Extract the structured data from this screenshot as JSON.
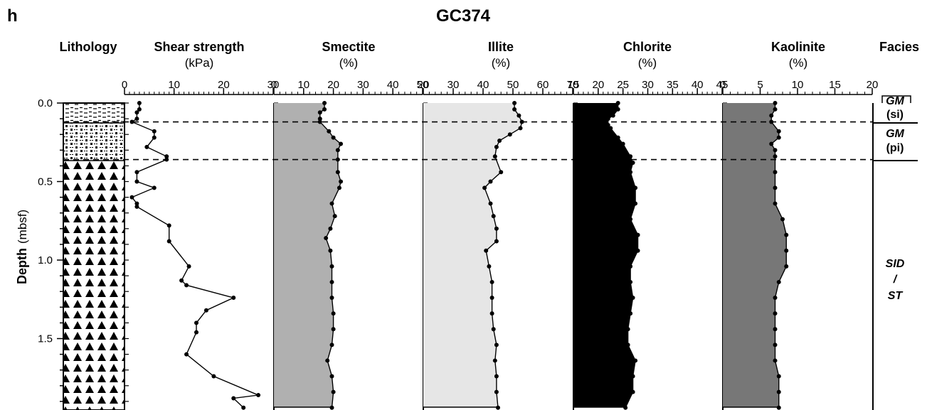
{
  "panel_letter": "h",
  "core_title": "GC374",
  "headers": {
    "lithology": "Lithology",
    "shear": "Shear strength",
    "shear_unit": "(kPa)",
    "smectite": "Smectite",
    "smectite_unit": "(%)",
    "illite": "Illite",
    "illite_unit": "(%)",
    "chlorite": "Chlorite",
    "chlorite_unit": "(%)",
    "kaolinite": "Kaolinite",
    "kaolinite_unit": "(%)",
    "facies": "Facies"
  },
  "y_axis": {
    "label_bold": "Depth",
    "label_unit": "(mbsf)",
    "ticks": [
      "0.0",
      "0.5",
      "1.0",
      "1.5"
    ]
  },
  "facies": {
    "gm1_a": "GM",
    "gm1_b": "(si)",
    "gm2_a": "GM",
    "gm2_b": "(pi)",
    "sid_a": "SID",
    "sid_b": "/",
    "sid_c": "ST"
  },
  "colors": {
    "smectite_fill": "#b0b0b0",
    "illite_fill": "#e6e6e6",
    "chlorite_fill": "#000000",
    "kaolinite_fill": "#777777"
  },
  "chart_data": [
    {
      "type": "line",
      "name": "Shear strength",
      "xlim": [
        0,
        30
      ],
      "xticks": [
        "0",
        "10",
        "20",
        "30"
      ],
      "ylim": [
        0.0,
        1.95
      ],
      "depth": [
        0.0,
        0.04,
        0.06,
        0.1,
        0.12,
        0.18,
        0.22,
        0.28,
        0.34,
        0.36,
        0.44,
        0.5,
        0.54,
        0.6,
        0.64,
        0.66,
        0.78,
        0.88,
        1.04,
        1.13,
        1.16,
        1.24,
        1.32,
        1.4,
        1.46,
        1.6,
        1.74,
        1.86,
        1.88,
        1.94
      ],
      "values": [
        3,
        3,
        2.5,
        2.5,
        1.5,
        6,
        6,
        4.5,
        8.5,
        8.5,
        2.5,
        2.5,
        6,
        1.5,
        2.5,
        2.5,
        9,
        9,
        13,
        11.5,
        12.5,
        22,
        16.5,
        14.5,
        14.5,
        12.5,
        18,
        27,
        22,
        24
      ]
    },
    {
      "type": "area",
      "name": "Smectite",
      "xlim": [
        0,
        50
      ],
      "xticks": [
        "0",
        "10",
        "20",
        "30",
        "40",
        "50"
      ],
      "ylim": [
        0.0,
        1.95
      ],
      "depth": [
        0.0,
        0.04,
        0.06,
        0.1,
        0.12,
        0.18,
        0.22,
        0.26,
        0.3,
        0.36,
        0.44,
        0.5,
        0.54,
        0.64,
        0.72,
        0.8,
        0.86,
        0.94,
        1.04,
        1.14,
        1.24,
        1.34,
        1.44,
        1.54,
        1.64,
        1.74,
        1.84,
        1.94
      ],
      "values": [
        17,
        17,
        15.5,
        15.5,
        15.5,
        18.5,
        20,
        22.5,
        21.5,
        21.5,
        21.5,
        22.5,
        22,
        19.5,
        20.5,
        19,
        17.5,
        19,
        19.5,
        19.5,
        19.5,
        20,
        20,
        19.5,
        18,
        19.5,
        20,
        19.5
      ]
    },
    {
      "type": "area",
      "name": "Illite",
      "xlim": [
        20,
        70
      ],
      "xticks": [
        "20",
        "30",
        "40",
        "50",
        "60",
        "70"
      ],
      "ylim": [
        0.0,
        1.95
      ],
      "depth": [
        0.0,
        0.04,
        0.08,
        0.12,
        0.16,
        0.2,
        0.24,
        0.28,
        0.34,
        0.44,
        0.5,
        0.54,
        0.64,
        0.72,
        0.8,
        0.88,
        0.94,
        1.04,
        1.14,
        1.24,
        1.34,
        1.44,
        1.54,
        1.64,
        1.74,
        1.84,
        1.94
      ],
      "values": [
        50.5,
        50.5,
        52,
        53,
        52.5,
        49,
        45.5,
        44.5,
        44,
        46,
        42.5,
        40.5,
        42.5,
        43.5,
        44.5,
        44.5,
        41,
        42,
        43,
        43,
        43,
        43.5,
        44.5,
        44,
        44.5,
        44.5,
        45
      ]
    },
    {
      "type": "area",
      "name": "Chlorite",
      "xlim": [
        15,
        45
      ],
      "xticks": [
        "15",
        "20",
        "25",
        "30",
        "35",
        "40",
        "45"
      ],
      "ylim": [
        0.0,
        1.95
      ],
      "depth": [
        0.0,
        0.04,
        0.08,
        0.1,
        0.14,
        0.16,
        0.22,
        0.26,
        0.34,
        0.38,
        0.44,
        0.54,
        0.64,
        0.74,
        0.84,
        0.94,
        1.04,
        1.14,
        1.24,
        1.34,
        1.44,
        1.54,
        1.64,
        1.74,
        1.84,
        1.94
      ],
      "values": [
        24,
        24,
        23,
        22,
        22,
        22.5,
        24,
        25,
        26.5,
        27,
        26.5,
        27.5,
        27.5,
        26.5,
        28,
        28,
        26.5,
        26.5,
        27,
        26.5,
        26,
        26,
        27.5,
        27,
        27,
        25.5
      ]
    },
    {
      "type": "area",
      "name": "Kaolinite",
      "xlim": [
        0,
        20
      ],
      "xticks": [
        "0",
        "5",
        "10",
        "15",
        "20"
      ],
      "ylim": [
        0.0,
        1.95
      ],
      "depth": [
        0.0,
        0.04,
        0.08,
        0.12,
        0.18,
        0.22,
        0.26,
        0.3,
        0.34,
        0.44,
        0.54,
        0.64,
        0.74,
        0.84,
        0.94,
        1.04,
        1.14,
        1.24,
        1.34,
        1.44,
        1.54,
        1.64,
        1.74,
        1.84,
        1.94
      ],
      "values": [
        7,
        7,
        6.5,
        6.5,
        7.5,
        7.5,
        6.5,
        7,
        7,
        7,
        7,
        7,
        8,
        8.5,
        8.5,
        8.5,
        7.5,
        7,
        7,
        7,
        7,
        7,
        7.5,
        7.5,
        7.5
      ]
    }
  ],
  "dashed_depths": [
    0.12,
    0.36
  ]
}
